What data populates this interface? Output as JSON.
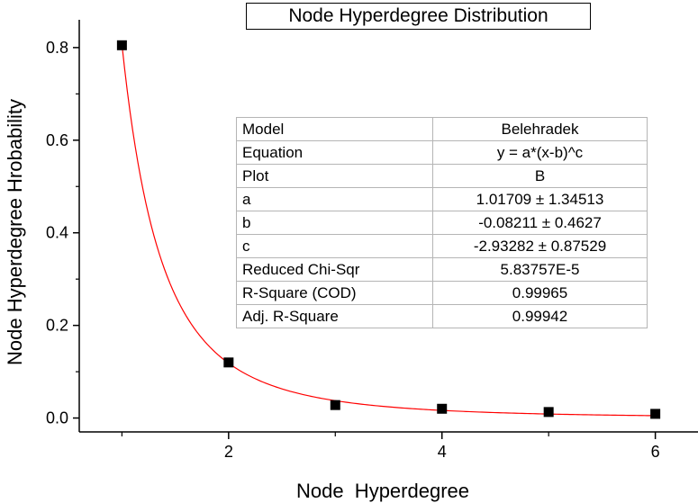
{
  "chart_data": {
    "type": "scatter",
    "title": "Node Hyperdegree Distribution",
    "xlabel": "Node  Hyperdegree",
    "ylabel": "Node Hyperdegree Hrobability",
    "xlim": [
      0.6,
      6.4
    ],
    "ylim": [
      -0.03,
      0.86
    ],
    "xticks": [
      2,
      4,
      6
    ],
    "xticks_minor": [
      1,
      3,
      5
    ],
    "yticks": [
      0.0,
      0.2,
      0.4,
      0.6,
      0.8
    ],
    "ytick_labels": [
      "0.0",
      "0.2",
      "0.4",
      "0.6",
      "0.8"
    ],
    "grid": false,
    "series": [
      {
        "kind": "points",
        "x": [
          1,
          2,
          3,
          4,
          5,
          6
        ],
        "y": [
          0.805,
          0.12,
          0.028,
          0.02,
          0.013,
          0.009
        ],
        "color": "#000000"
      },
      {
        "kind": "fit-curve",
        "model": "Belehradek",
        "params": {
          "a": 1.01709,
          "b": -0.08211,
          "c": -2.93282
        },
        "x_range": [
          1,
          6
        ],
        "color": "#ff0000"
      }
    ]
  },
  "fit_table": {
    "rows": [
      {
        "key": "Model",
        "value": "Belehradek"
      },
      {
        "key": "Equation",
        "value": "y = a*(x-b)^c"
      },
      {
        "key": "Plot",
        "value": "B"
      },
      {
        "key": "a",
        "value": "1.01709 ± 1.34513"
      },
      {
        "key": "b",
        "value": "-0.08211 ± 0.4627"
      },
      {
        "key": "c",
        "value": "-2.93282 ± 0.87529"
      },
      {
        "key": "Reduced Chi-Sqr",
        "value": "5.83757E-5"
      },
      {
        "key": "R-Square (COD)",
        "value": "0.99965"
      },
      {
        "key": "Adj. R-Square",
        "value": "0.99942"
      }
    ]
  }
}
